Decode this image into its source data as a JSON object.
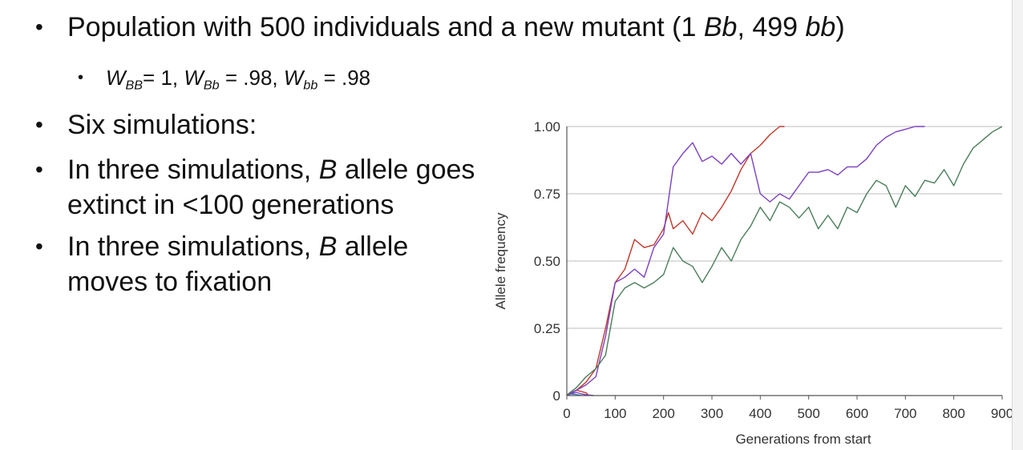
{
  "slide": {
    "bullets": [
      {
        "parts": [
          "Population with 500 individuals and a new mutant (1 ",
          "Bb",
          ", 499 ",
          "bb",
          ")"
        ]
      },
      {
        "sub": true,
        "parts": [
          "W",
          "BB",
          "= 1, ",
          "W",
          "Bb",
          " = .98, ",
          "W",
          "bb",
          " = .98"
        ]
      },
      {
        "parts": [
          "Six simulations:"
        ]
      },
      {
        "parts": [
          "In three simulations, ",
          "B",
          " allele goes"
        ],
        "line2": "extinct in <100 generations"
      },
      {
        "parts": [
          "In three simulations, ",
          "B",
          " allele"
        ],
        "line2": "moves to fixation"
      }
    ]
  },
  "chart_data": {
    "type": "line",
    "xlabel": "Generations from start",
    "ylabel": "Allele frequency",
    "xlim": [
      0,
      900
    ],
    "ylim": [
      0,
      1
    ],
    "xticks": [
      "0",
      "100",
      "200",
      "300",
      "400",
      "500",
      "600",
      "700",
      "800",
      "900"
    ],
    "yticks": [
      "0",
      "0.25",
      "0.50",
      "0.75",
      "1.00"
    ],
    "grid": "horizontal",
    "legend": "none",
    "series": [
      {
        "color": "#c0392b",
        "x": [
          0,
          10,
          20,
          30,
          40,
          45
        ],
        "y": [
          0.002,
          0.01,
          0.02,
          0.015,
          0.01,
          0.0
        ]
      },
      {
        "color": "#2c7fb8",
        "x": [
          0,
          10,
          20,
          30
        ],
        "y": [
          0.002,
          0.006,
          0.004,
          0.0
        ]
      },
      {
        "color": "#7b3fbf",
        "x": [
          0,
          10,
          20,
          30,
          40,
          55
        ],
        "y": [
          0.002,
          0.008,
          0.012,
          0.006,
          0.003,
          0.0
        ]
      },
      {
        "color": "#c0392b",
        "x": [
          0,
          20,
          40,
          60,
          80,
          100,
          120,
          140,
          160,
          180,
          200,
          210,
          220,
          240,
          260,
          280,
          300,
          320,
          340,
          360,
          380,
          400,
          420,
          440,
          450
        ],
        "y": [
          0.002,
          0.02,
          0.05,
          0.1,
          0.25,
          0.42,
          0.47,
          0.58,
          0.55,
          0.56,
          0.62,
          0.68,
          0.62,
          0.65,
          0.6,
          0.68,
          0.65,
          0.7,
          0.76,
          0.84,
          0.9,
          0.93,
          0.97,
          1.0,
          1.0
        ]
      },
      {
        "color": "#7b3fbf",
        "x": [
          0,
          20,
          40,
          60,
          80,
          100,
          120,
          140,
          160,
          180,
          200,
          220,
          240,
          260,
          280,
          300,
          320,
          340,
          360,
          380,
          400,
          420,
          440,
          460,
          480,
          500,
          520,
          540,
          560,
          580,
          600,
          620,
          640,
          660,
          680,
          700,
          720,
          740
        ],
        "y": [
          0.002,
          0.02,
          0.04,
          0.07,
          0.22,
          0.42,
          0.44,
          0.47,
          0.44,
          0.55,
          0.6,
          0.85,
          0.9,
          0.94,
          0.87,
          0.89,
          0.86,
          0.9,
          0.86,
          0.9,
          0.75,
          0.72,
          0.75,
          0.73,
          0.78,
          0.83,
          0.83,
          0.84,
          0.82,
          0.85,
          0.85,
          0.88,
          0.93,
          0.96,
          0.98,
          0.99,
          1.0,
          1.0
        ]
      },
      {
        "color": "#4a7d5a",
        "x": [
          0,
          20,
          40,
          60,
          80,
          100,
          120,
          140,
          160,
          180,
          200,
          220,
          240,
          260,
          280,
          300,
          320,
          340,
          360,
          380,
          400,
          420,
          440,
          460,
          480,
          500,
          520,
          540,
          560,
          580,
          600,
          620,
          640,
          660,
          680,
          700,
          720,
          740,
          760,
          780,
          800,
          820,
          840,
          860,
          880,
          900
        ],
        "y": [
          0.002,
          0.03,
          0.07,
          0.1,
          0.15,
          0.35,
          0.4,
          0.42,
          0.4,
          0.42,
          0.45,
          0.55,
          0.5,
          0.48,
          0.42,
          0.48,
          0.55,
          0.5,
          0.58,
          0.63,
          0.7,
          0.65,
          0.72,
          0.7,
          0.66,
          0.7,
          0.62,
          0.67,
          0.62,
          0.7,
          0.68,
          0.75,
          0.8,
          0.78,
          0.7,
          0.78,
          0.74,
          0.8,
          0.79,
          0.84,
          0.78,
          0.86,
          0.92,
          0.95,
          0.98,
          1.0
        ]
      }
    ]
  }
}
